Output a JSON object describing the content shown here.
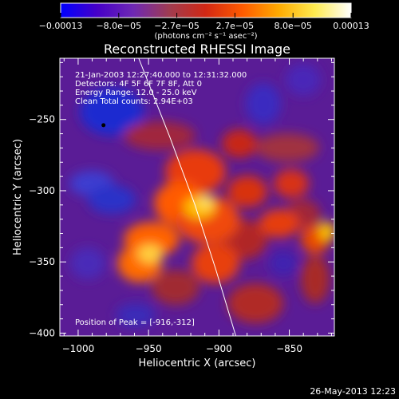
{
  "chart_data": {
    "type": "heatmap",
    "title": "Reconstructed RHESSI Image",
    "xlabel": "Heliocentric X (arcsec)",
    "ylabel": "Heliocentric Y (arcsec)",
    "xlim": [
      -1013,
      -818
    ],
    "ylim": [
      -402,
      -207
    ],
    "x_ticks": [
      -1000,
      -950,
      -900,
      -850
    ],
    "x_tick_labels": [
      "−1000",
      "−950",
      "−900",
      "−850"
    ],
    "y_ticks": [
      -250,
      -300,
      -350,
      -400
    ],
    "y_tick_labels": [
      "−250",
      "−300",
      "−350",
      "−400"
    ],
    "colorbar": {
      "range": [
        -0.00013,
        0.00013
      ],
      "tick_labels": [
        "−0.00013",
        "−8.0e−05",
        "−2.7e−05",
        "2.7e−05",
        "8.0e−05",
        "0.00013"
      ],
      "unit_label": "(photons cm⁻² s⁻¹ asec⁻²)",
      "colors": [
        "#0000ff",
        "#4600c8",
        "#6e28b4",
        "#a03c50",
        "#d22814",
        "#ff5a00",
        "#ffaa00",
        "#ffeb50",
        "#ffffff"
      ]
    },
    "info_lines": [
      "21-Jan-2003 12:27:40.000 to 12:31:32.000",
      "Detectors: 4F 5F 6F 7F 8F, Att 0",
      "Energy Range: 12.0 - 25.0 keV",
      "Clean     Total counts: 2.94E+03"
    ],
    "peak_label": "Position of Peak = [-916,-312]",
    "peak_position": [
      -916,
      -312
    ],
    "marker_position": [
      -982,
      -254
    ],
    "limb_points": [
      [
        -957,
        -207
      ],
      [
        -935,
        -262
      ],
      [
        -917,
        -310
      ],
      [
        -902,
        -356
      ],
      [
        -888,
        -402
      ]
    ]
  },
  "footer": {
    "timestamp": "26-May-2013 12:23"
  }
}
